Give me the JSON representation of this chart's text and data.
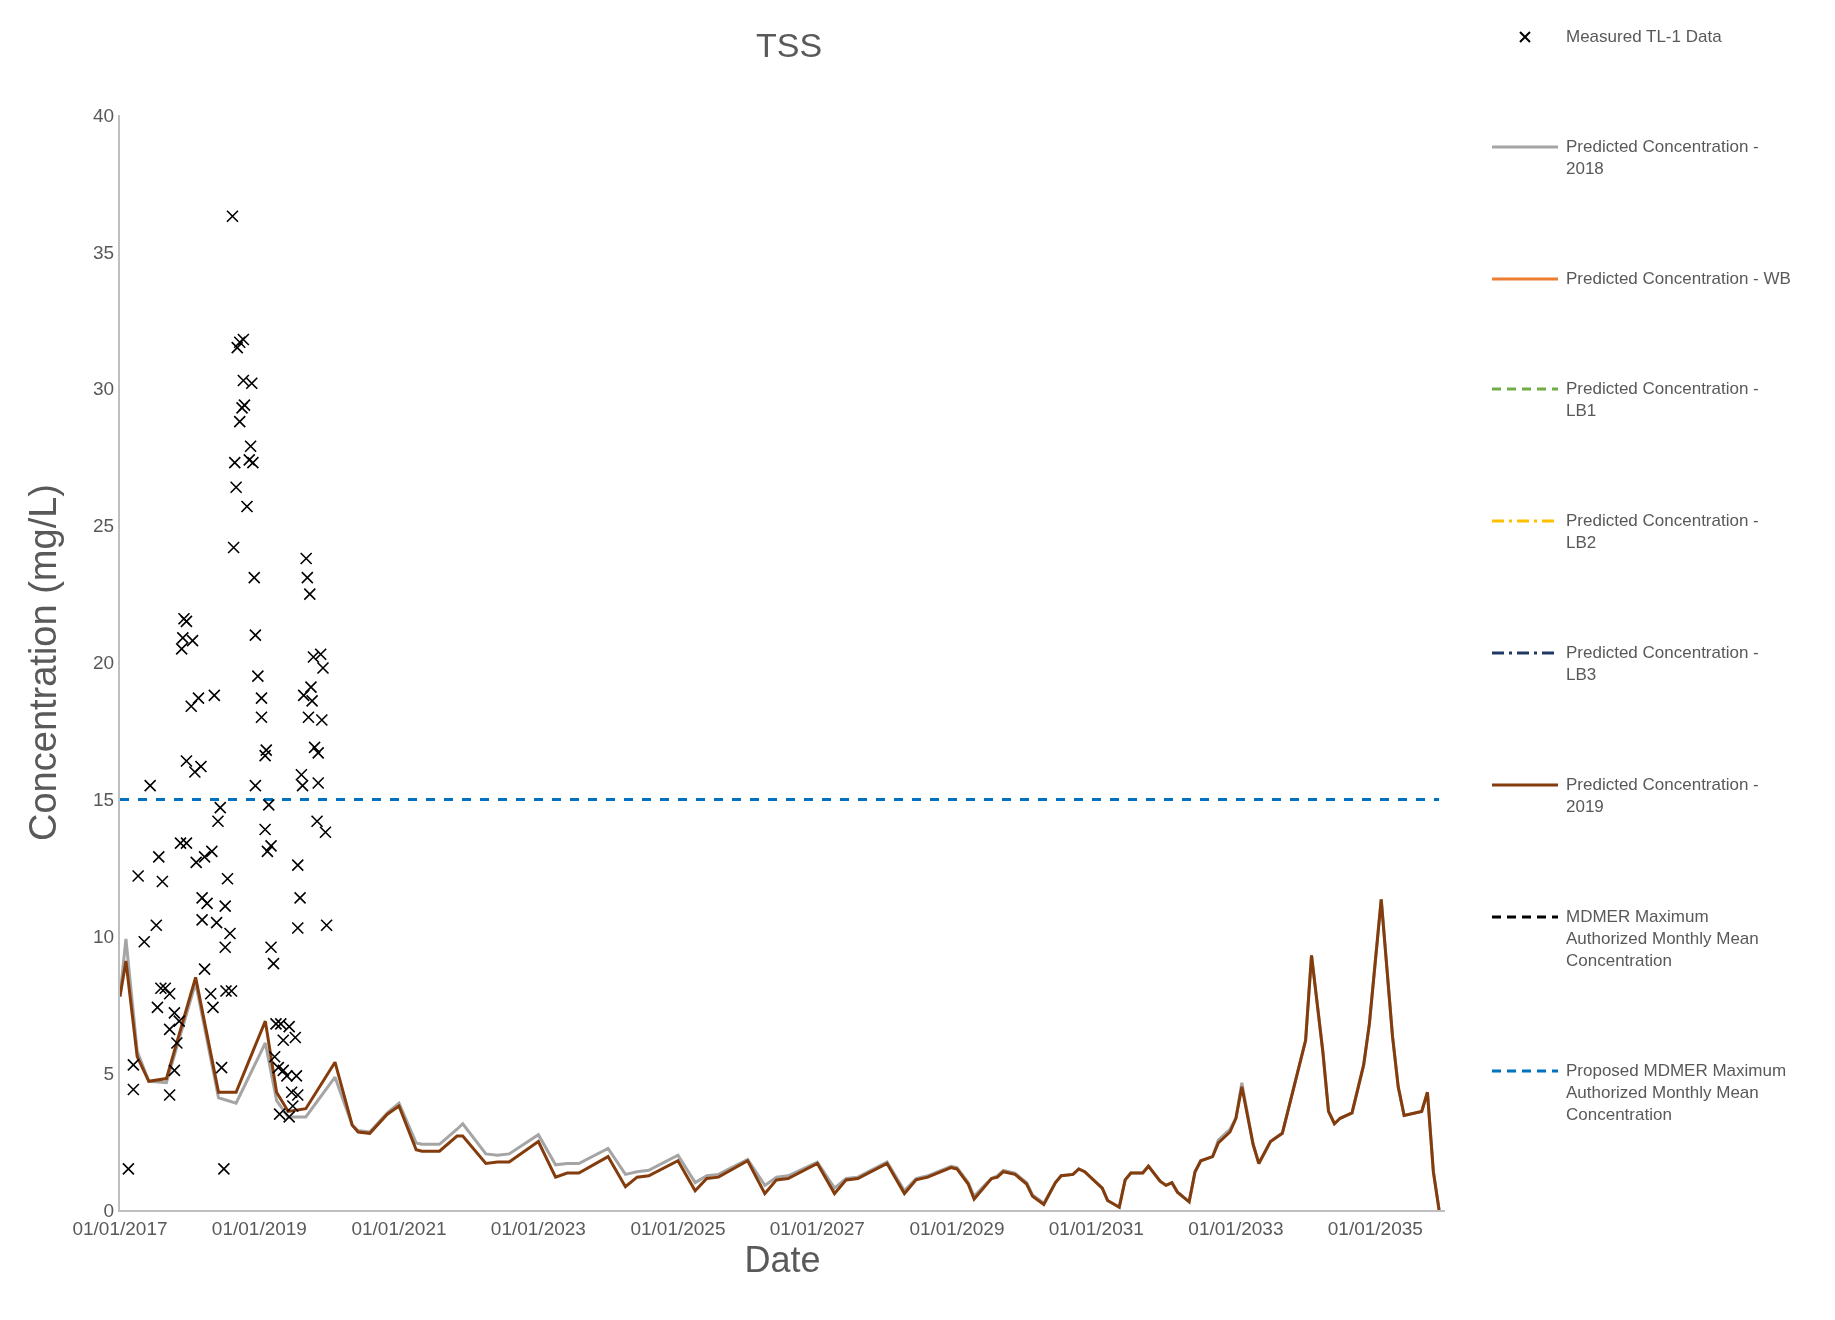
{
  "chart_data": {
    "type": "line",
    "title": "TSS",
    "xlabel": "Date",
    "ylabel": "Concentration (mg/L)",
    "xlim": [
      "2017-01-01",
      "2036-01-01"
    ],
    "xticks": [
      {
        "value": "2017-01-01",
        "label": "01/01/2017"
      },
      {
        "value": "2019-01-01",
        "label": "01/01/2019"
      },
      {
        "value": "2021-01-01",
        "label": "01/01/2021"
      },
      {
        "value": "2023-01-01",
        "label": "01/01/2023"
      },
      {
        "value": "2025-01-01",
        "label": "01/01/2025"
      },
      {
        "value": "2027-01-01",
        "label": "01/01/2027"
      },
      {
        "value": "2029-01-01",
        "label": "01/01/2029"
      },
      {
        "value": "2031-01-01",
        "label": "01/01/2031"
      },
      {
        "value": "2033-01-01",
        "label": "01/01/2033"
      },
      {
        "value": "2035-01-01",
        "label": "01/01/2035"
      }
    ],
    "ylim": [
      0,
      40
    ],
    "yticks": [
      0,
      5,
      10,
      15,
      20,
      25,
      30,
      35,
      40
    ],
    "grid": false,
    "legend": "right",
    "series": [
      {
        "name": "Measured TL-1 Data",
        "type": "scatter",
        "marker": "cross",
        "color": "#000000",
        "x": [
          "2017-02-14",
          "2017-03-12",
          "2017-03-12",
          "2017-04-06",
          "2017-05-08",
          "2017-06-08",
          "2017-07-10",
          "2017-07-23",
          "2017-08-11",
          "2017-07-16",
          "2017-08-03",
          "2017-08-26",
          "2017-09-18",
          "2017-09-18",
          "2017-09-18",
          "2017-10-13",
          "2017-10-13",
          "2017-10-26",
          "2017-11-07",
          "2017-11-14",
          "2017-12-15",
          "2017-11-20",
          "2017-11-26",
          "2017-12-02",
          "2017-12-15",
          "2018-01-16",
          "2017-12-15",
          "2018-01-09",
          "2018-02-16",
          "2018-01-28",
          "2018-03-01",
          "2018-02-04",
          "2018-03-07",
          "2018-04-02",
          "2018-03-20",
          "2018-04-27",
          "2018-03-07",
          "2018-03-20",
          "2018-04-21",
          "2018-05-03",
          "2018-05-10",
          "2018-05-29",
          "2018-06-10",
          "2018-05-22",
          "2018-06-17",
          "2018-06-29",
          "2018-07-06",
          "2018-07-18",
          "2018-07-06",
          "2018-07-31",
          "2018-07-10",
          "2018-08-08",
          "2018-08-13",
          "2018-08-19",
          "2018-08-25",
          "2018-09-01",
          "2018-09-07",
          "2018-09-20",
          "2018-10-09",
          "2018-09-20",
          "2018-10-09",
          "2018-10-15",
          "2018-10-02",
          "2018-10-28",
          "2018-11-09",
          "2018-11-28",
          "2018-11-16",
          "2018-11-22",
          "2018-12-05",
          "2018-12-11",
          "2018-12-24",
          "2019-01-12",
          "2019-01-12",
          "2018-12-11",
          "2019-01-31",
          "2019-02-06",
          "2019-01-31",
          "2019-02-12",
          "2019-03-03",
          "2019-02-19",
          "2019-03-03",
          "2019-03-16",
          "2019-03-29",
          "2019-04-23",
          "2019-03-22",
          "2019-04-10",
          "2019-04-17",
          "2019-05-06",
          "2019-05-06",
          "2019-05-25",
          "2019-06-06",
          "2019-06-19",
          "2019-06-06",
          "2019-07-08",
          "2019-07-14",
          "2019-07-21",
          "2019-07-21",
          "2019-08-02",
          "2019-08-09",
          "2019-08-15",
          "2019-08-21",
          "2019-09-03",
          "2019-09-09",
          "2019-09-22",
          "2019-09-15",
          "2019-09-28",
          "2019-10-11",
          "2019-11-18",
          "2019-10-04",
          "2019-10-17",
          "2019-11-05",
          "2019-10-30",
          "2019-11-05",
          "2019-11-24",
          "2019-11-30",
          "2019-12-13",
          "2019-12-19",
          "2019-07-21",
          "2019-06-25"
        ],
        "values": [
          1.5,
          5.3,
          4.4,
          12.2,
          9.8,
          15.5,
          10.4,
          12.9,
          12.0,
          7.4,
          8.1,
          8.1,
          7.9,
          6.6,
          4.2,
          7.2,
          5.1,
          6.1,
          6.9,
          13.4,
          13.4,
          20.5,
          20.9,
          21.6,
          21.5,
          20.8,
          16.4,
          18.4,
          18.7,
          16.0,
          16.2,
          12.7,
          11.4,
          11.2,
          12.9,
          13.1,
          10.6,
          8.8,
          7.9,
          7.4,
          18.8,
          14.2,
          14.7,
          10.5,
          5.2,
          1.5,
          11.1,
          12.1,
          9.6,
          10.1,
          8.0,
          8.0,
          36.3,
          24.2,
          27.3,
          26.4,
          31.5,
          31.7,
          31.8,
          28.8,
          30.3,
          29.4,
          29.3,
          25.7,
          27.4,
          27.3,
          27.9,
          30.2,
          23.1,
          21.0,
          19.5,
          18.7,
          18.0,
          15.5,
          16.6,
          16.8,
          13.9,
          13.1,
          13.3,
          14.8,
          9.6,
          9.0,
          6.8,
          6.8,
          5.6,
          5.2,
          3.5,
          6.2,
          5.1,
          4.9,
          6.7,
          4.3,
          3.4,
          6.3,
          4.9,
          12.6,
          10.3,
          11.4,
          15.9,
          15.5,
          18.8,
          23.8,
          23.1,
          22.5,
          18.0,
          19.1,
          20.2,
          20.3,
          18.6,
          16.9,
          16.7,
          14.2,
          15.6,
          17.9,
          19.8,
          13.8,
          10.4,
          4.2,
          3.8
        ]
      },
      {
        "name": "Predicted Concentration - 2018",
        "type": "line",
        "marker": "none",
        "line_style": "solid",
        "color": "#a5a5a5",
        "x": [
          "2017-01",
          "2017-02",
          "2017-04",
          "2017-06",
          "2017-09",
          "2018-02",
          "2018-06",
          "2018-09",
          "2019-02",
          "2019-04",
          "2019-06",
          "2019-09",
          "2020-02",
          "2020-05",
          "2020-06",
          "2020-08",
          "2020-11",
          "2021-01",
          "2021-04",
          "2021-05",
          "2021-08",
          "2021-11",
          "2021-12",
          "2022-04",
          "2022-06",
          "2022-08",
          "2023-01",
          "2023-04",
          "2023-06",
          "2023-08",
          "2024-01",
          "2024-04",
          "2024-06",
          "2024-08",
          "2025-01",
          "2025-04",
          "2025-06",
          "2025-08",
          "2026-01",
          "2026-04",
          "2026-06",
          "2026-08",
          "2027-01",
          "2027-04",
          "2027-06",
          "2027-08",
          "2028-01",
          "2028-04",
          "2028-06",
          "2028-08",
          "2028-12",
          "2029-01",
          "2029-03",
          "2029-04",
          "2029-06",
          "2029-07",
          "2029-08",
          "2029-09",
          "2029-11",
          "2030-01",
          "2030-02",
          "2030-04",
          "2030-06",
          "2030-07",
          "2030-09",
          "2030-10",
          "2030-11",
          "2031-02",
          "2031-03",
          "2031-05",
          "2031-06",
          "2031-07",
          "2031-09",
          "2031-10",
          "2031-12",
          "2032-01",
          "2032-02",
          "2032-03",
          "2032-05",
          "2032-06",
          "2032-07",
          "2032-09",
          "2032-10",
          "2032-12",
          "2033-01",
          "2033-02",
          "2033-04",
          "2033-05",
          "2033-07",
          "2033-09",
          "2033-11",
          "2034-01",
          "2034-02",
          "2034-04",
          "2034-05",
          "2034-06",
          "2034-07",
          "2034-09",
          "2034-11",
          "2034-12",
          "2035-02",
          "2035-04",
          "2035-05",
          "2035-06",
          "2035-09",
          "2035-10",
          "2035-11",
          "2035-12"
        ],
        "values": [
          7.8,
          9.9,
          5.8,
          4.7,
          4.65,
          8.3,
          4.1,
          3.9,
          6.1,
          4.0,
          3.4,
          3.4,
          4.85,
          3.1,
          2.9,
          2.85,
          3.55,
          3.9,
          2.45,
          2.4,
          2.4,
          2.95,
          3.15,
          2.05,
          2.0,
          2.05,
          2.75,
          1.65,
          1.7,
          1.7,
          2.25,
          1.3,
          1.4,
          1.45,
          2.0,
          1.0,
          1.25,
          1.3,
          1.85,
          0.9,
          1.2,
          1.25,
          1.75,
          0.8,
          1.15,
          1.2,
          1.75,
          0.7,
          1.15,
          1.25,
          1.6,
          1.55,
          1.0,
          0.5,
          0.95,
          1.15,
          1.25,
          1.45,
          1.35,
          1.0,
          0.55,
          0.25,
          1.0,
          1.25,
          1.3,
          1.5,
          1.4,
          0.8,
          0.35,
          0.1,
          1.1,
          1.35,
          1.35,
          1.6,
          1.05,
          0.9,
          1.0,
          0.65,
          0.3,
          1.4,
          1.8,
          1.95,
          2.55,
          2.95,
          3.35,
          4.65,
          2.4,
          1.7,
          2.5,
          2.8,
          4.5,
          6.2,
          9.3,
          5.8,
          3.6,
          3.15,
          3.35,
          3.55,
          5.3,
          6.8,
          11.35,
          6.35,
          4.5,
          3.45,
          3.6,
          4.3,
          1.4,
          0
        ]
      },
      {
        "name": "Predicted Concentration - WB",
        "type": "line",
        "marker": "none",
        "line_style": "solid",
        "color": "#ed7d31",
        "values": [
          null
        ]
      },
      {
        "name": "Predicted Concentration - LB1",
        "type": "line",
        "marker": "none",
        "line_style": "dashed",
        "color": "#70ad47",
        "values": [
          null
        ]
      },
      {
        "name": "Predicted Concentration - LB2",
        "type": "line",
        "marker": "none",
        "line_style": "dashdot",
        "color": "#ffc000",
        "values": [
          null
        ]
      },
      {
        "name": "Predicted Concentration - LB3",
        "type": "line",
        "marker": "none",
        "line_style": "dashdot",
        "color": "#203864",
        "values": [
          null
        ]
      },
      {
        "name": "Predicted Concentration - 2019",
        "type": "line",
        "marker": "none",
        "line_style": "solid",
        "color": "#843c0c",
        "x": [
          "2017-01",
          "2017-02",
          "2017-04",
          "2017-06",
          "2017-09",
          "2018-02",
          "2018-06",
          "2018-09",
          "2019-02",
          "2019-04",
          "2019-06",
          "2019-09",
          "2020-02",
          "2020-05",
          "2020-06",
          "2020-08",
          "2020-11",
          "2021-01",
          "2021-04",
          "2021-05",
          "2021-08",
          "2021-11",
          "2021-12",
          "2022-04",
          "2022-06",
          "2022-08",
          "2023-01",
          "2023-04",
          "2023-06",
          "2023-08",
          "2024-01",
          "2024-04",
          "2024-06",
          "2024-08",
          "2025-01",
          "2025-04",
          "2025-06",
          "2025-08",
          "2026-01",
          "2026-04",
          "2026-06",
          "2026-08",
          "2027-01",
          "2027-04",
          "2027-06",
          "2027-08",
          "2028-01",
          "2028-04",
          "2028-06",
          "2028-08",
          "2028-12",
          "2029-01",
          "2029-03",
          "2029-04",
          "2029-06",
          "2029-07",
          "2029-08",
          "2029-09",
          "2029-11",
          "2030-01",
          "2030-02",
          "2030-04",
          "2030-06",
          "2030-07",
          "2030-09",
          "2030-10",
          "2030-11",
          "2031-02",
          "2031-03",
          "2031-05",
          "2031-06",
          "2031-07",
          "2031-09",
          "2031-10",
          "2031-12",
          "2032-01",
          "2032-02",
          "2032-03",
          "2032-05",
          "2032-06",
          "2032-07",
          "2032-09",
          "2032-10",
          "2032-12",
          "2033-01",
          "2033-02",
          "2033-04",
          "2033-05",
          "2033-07",
          "2033-09",
          "2033-11",
          "2034-01",
          "2034-02",
          "2034-04",
          "2034-05",
          "2034-06",
          "2034-07",
          "2034-09",
          "2034-11",
          "2034-12",
          "2035-02",
          "2035-04",
          "2035-05",
          "2035-06",
          "2035-09",
          "2035-10",
          "2035-11",
          "2035-12"
        ],
        "values": [
          7.8,
          9.1,
          5.6,
          4.7,
          4.8,
          8.5,
          4.3,
          4.3,
          6.9,
          4.3,
          3.6,
          3.7,
          5.4,
          3.1,
          2.85,
          2.8,
          3.5,
          3.8,
          2.2,
          2.15,
          2.15,
          2.7,
          2.7,
          1.7,
          1.75,
          1.75,
          2.5,
          1.2,
          1.35,
          1.35,
          1.95,
          0.85,
          1.2,
          1.25,
          1.8,
          0.7,
          1.15,
          1.2,
          1.8,
          0.6,
          1.1,
          1.15,
          1.7,
          0.6,
          1.1,
          1.15,
          1.7,
          0.6,
          1.1,
          1.2,
          1.55,
          1.5,
          0.95,
          0.4,
          0.9,
          1.15,
          1.2,
          1.4,
          1.3,
          0.95,
          0.5,
          0.2,
          1.0,
          1.25,
          1.3,
          1.5,
          1.4,
          0.8,
          0.35,
          0.1,
          1.1,
          1.35,
          1.35,
          1.6,
          1.05,
          0.9,
          1.0,
          0.65,
          0.3,
          1.4,
          1.8,
          1.95,
          2.45,
          2.85,
          3.35,
          4.5,
          2.4,
          1.7,
          2.5,
          2.8,
          4.5,
          6.2,
          9.3,
          5.8,
          3.6,
          3.15,
          3.35,
          3.55,
          5.3,
          6.8,
          11.35,
          6.35,
          4.5,
          3.45,
          3.6,
          4.3,
          1.4,
          0
        ]
      },
      {
        "name": "MDMER Maximum Authorized Monthly Mean Concentration",
        "type": "line",
        "marker": "none",
        "line_style": "dashed",
        "color": "#000000",
        "values": [
          null
        ]
      },
      {
        "name": "Proposed MDMER Maximum Authorized Monthly Mean Concentration",
        "type": "line",
        "marker": "none",
        "line_style": "dashed",
        "color": "#0070c0",
        "x": [
          "2017-01-01",
          "2035-12-01"
        ],
        "values": [
          15,
          15
        ]
      }
    ]
  }
}
